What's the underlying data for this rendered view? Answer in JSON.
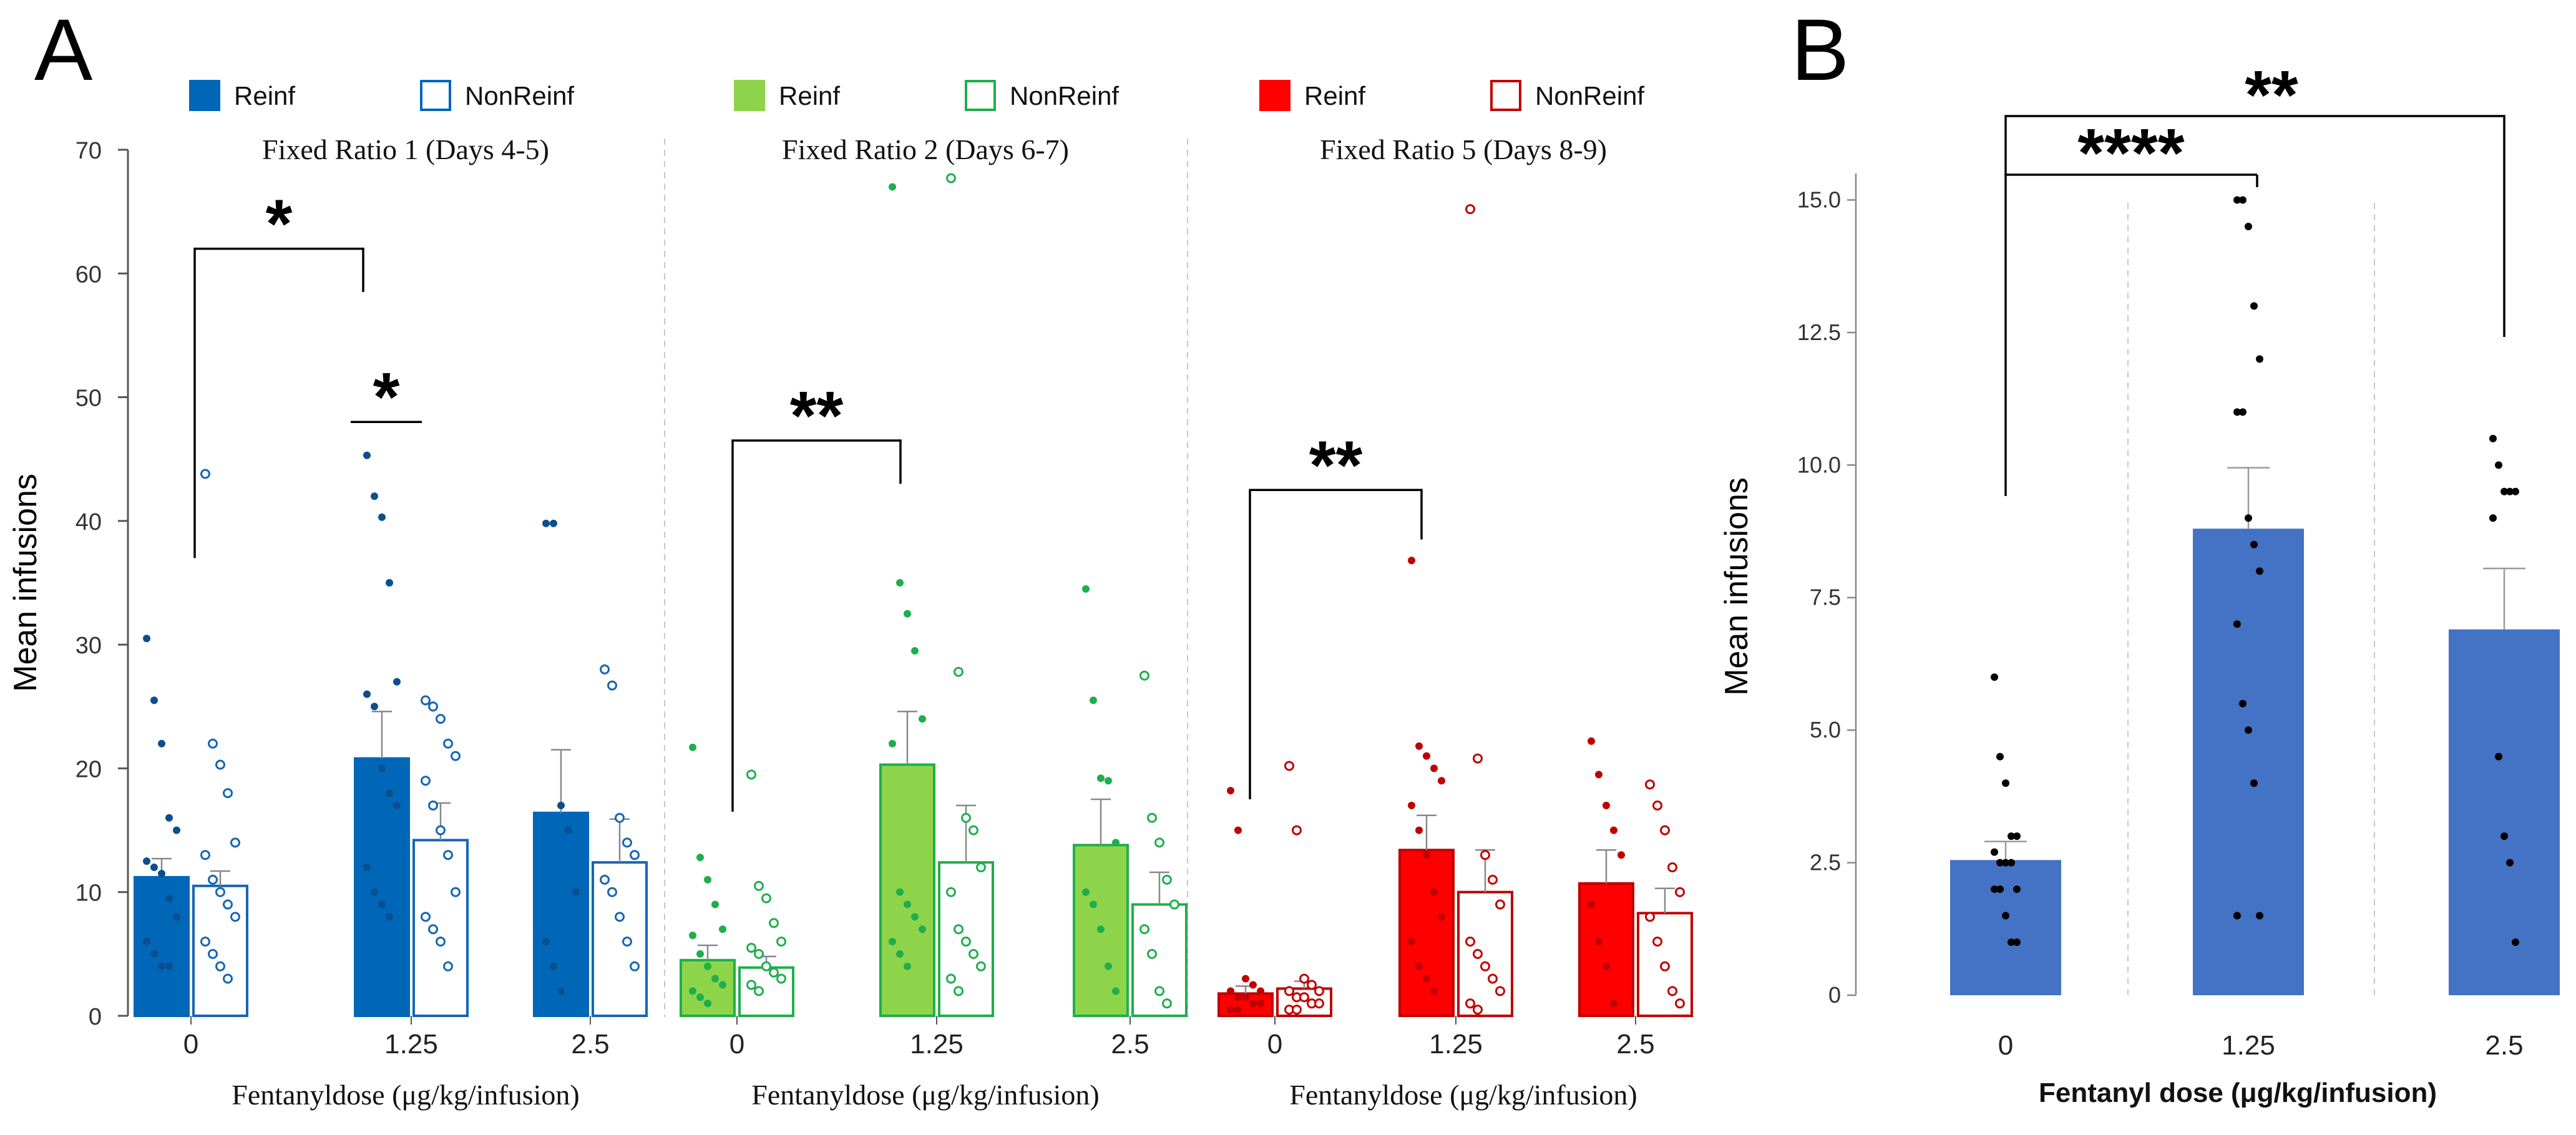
{
  "figure_labels": {
    "a": "A",
    "b": "B"
  },
  "chart_data": [
    {
      "type": "bar",
      "panel": "A",
      "ylabel": "Mean infusions",
      "ylim": [
        0,
        70
      ],
      "yticks": [
        "0",
        "10",
        "20",
        "30",
        "40",
        "50",
        "60",
        "70"
      ],
      "xlabel": "Fentanyldose (μg/kg/infusion)",
      "legend": [
        {
          "label": "Reinf",
          "filled": true,
          "color": "#0066b8"
        },
        {
          "label": "NonReinf",
          "filled": false,
          "color": "#0066b8"
        },
        {
          "label": "Reinf",
          "filled": true,
          "color": "#8ed44a"
        },
        {
          "label": "NonReinf",
          "filled": false,
          "color": "#1fae4b"
        },
        {
          "label": "Reinf",
          "filled": true,
          "color": "#ff0000"
        },
        {
          "label": "NonReinf",
          "filled": false,
          "color": "#c00000"
        }
      ],
      "groups": [
        {
          "title": "Fixed Ratio 1 (Days 4-5)",
          "categories": [
            "0",
            "1.25",
            "2.5"
          ],
          "reinf_color": "#0066b8",
          "reinf_edge": "#0066b8",
          "reinf_dot": "#0b4f8f",
          "nonreinf_color": "#1665b6",
          "series": [
            {
              "name": "Reinf",
              "values": [
                11.2,
                20.8,
                16.4
              ],
              "errors": [
                1.5,
                3.8,
                5.1
              ],
              "points": [
                [
                  30.5,
                  25.5,
                  22,
                  16,
                  15,
                  12.5,
                  12,
                  11.5,
                  9.5,
                  8,
                  6,
                  5,
                  4,
                  4
                ],
                [
                  45.3,
                  42,
                  40.3,
                  35,
                  27,
                  26,
                  25,
                  20,
                  18,
                  17,
                  12,
                  10,
                  9,
                  8
                ],
                [
                  39.8,
                  39.8,
                  17,
                  15,
                  10,
                  6,
                  4,
                  2
                ]
              ]
            },
            {
              "name": "NonReinf",
              "values": [
                10.5,
                14.2,
                12.4
              ],
              "errors": [
                1.2,
                3.0,
                3.5
              ],
              "points": [
                [
                  43.8,
                  22,
                  20.3,
                  18,
                  14,
                  13,
                  11,
                  10,
                  9,
                  8,
                  6,
                  5,
                  4,
                  3
                ],
                [
                  25.5,
                  25,
                  24,
                  22,
                  21,
                  19,
                  17,
                  15,
                  13,
                  10,
                  8,
                  7,
                  6,
                  4
                ],
                [
                  28,
                  26.7,
                  16,
                  14,
                  13,
                  11,
                  10,
                  8,
                  6,
                  4
                ]
              ]
            }
          ],
          "significance": [
            {
              "label": "*",
              "from": "0",
              "to": "1.25",
              "y": 62
            },
            {
              "label": "*",
              "from": "1.25 Reinf",
              "to": "1.25 NonReinf",
              "y": 48
            }
          ]
        },
        {
          "title": "Fixed Ratio 2 (Days 6-7)",
          "categories": [
            "0",
            "1.25",
            "2.5"
          ],
          "reinf_color": "#8ed44a",
          "reinf_edge": "#1fae4b",
          "reinf_dot": "#1fae4b",
          "nonreinf_color": "#1fae4b",
          "series": [
            {
              "name": "Reinf",
              "values": [
                4.5,
                20.3,
                13.8
              ],
              "errors": [
                1.2,
                4.3,
                3.7
              ],
              "points": [
                [
                  21.7,
                  12.8,
                  11,
                  9,
                  7,
                  6.5,
                  5,
                  4,
                  3,
                  2.5,
                  2,
                  1.5,
                  1
                ],
                [
                  67,
                  35,
                  32.5,
                  29.5,
                  24,
                  22,
                  10,
                  9,
                  8,
                  7,
                  6,
                  5,
                  4
                ],
                [
                  34.5,
                  25.5,
                  19.2,
                  19,
                  14,
                  10,
                  9,
                  7,
                  4,
                  2
                ]
              ]
            },
            {
              "name": "NonReinf",
              "values": [
                3.9,
                12.4,
                9.0
              ],
              "errors": [
                0.9,
                4.6,
                2.6
              ],
              "points": [
                [
                  19.5,
                  10.5,
                  9.5,
                  7.5,
                  6,
                  5.5,
                  5,
                  4,
                  3.5,
                  3,
                  2.5,
                  2
                ],
                [
                  67.7,
                  27.8,
                  16,
                  15,
                  12,
                  10,
                  7,
                  6,
                  5,
                  4,
                  3,
                  2
                ],
                [
                  27.5,
                  16,
                  14,
                  11,
                  9,
                  7,
                  5,
                  2,
                  1
                ]
              ]
            }
          ],
          "significance": [
            {
              "label": "**",
              "from": "0",
              "to": "1.25",
              "y": 47
            }
          ]
        },
        {
          "title": "Fixed Ratio 5 (Days 8-9)",
          "categories": [
            "0",
            "1.25",
            "2.5"
          ],
          "reinf_color": "#ff0000",
          "reinf_edge": "#c00000",
          "reinf_dot": "#c00000",
          "nonreinf_color": "#c00000",
          "series": [
            {
              "name": "Reinf",
              "values": [
                1.8,
                13.4,
                10.7
              ],
              "errors": [
                0.6,
                2.8,
                2.7
              ],
              "points": [
                [
                  18.2,
                  15,
                  3,
                  2.5,
                  2,
                  2,
                  1.5,
                  1.5,
                  1,
                  1,
                  0.5,
                  0.5
                ],
                [
                  36.8,
                  21.8,
                  21,
                  20,
                  19,
                  17,
                  15,
                  13,
                  10,
                  8,
                  6,
                  4,
                  3,
                  2
                ],
                [
                  22.2,
                  19.5,
                  17,
                  15,
                  13,
                  9,
                  6,
                  4,
                  1
                ]
              ]
            },
            {
              "name": "NonReinf",
              "values": [
                2.2,
                10.0,
                8.3
              ],
              "errors": [
                0.6,
                3.4,
                2.0
              ],
              "points": [
                [
                  20.2,
                  15,
                  3,
                  2.5,
                  2,
                  2,
                  1.5,
                  1.5,
                  1,
                  1,
                  0.5,
                  0.5
                ],
                [
                  65.2,
                  20.8,
                  13,
                  11,
                  9,
                  6,
                  5,
                  4,
                  3,
                  2,
                  1,
                  0.5
                ],
                [
                  18.7,
                  17,
                  15,
                  12,
                  10,
                  8,
                  6,
                  4,
                  2,
                  1
                ]
              ]
            }
          ],
          "significance": [
            {
              "label": "**",
              "from": "0",
              "to": "1.25",
              "y": 43
            }
          ]
        }
      ]
    },
    {
      "type": "bar",
      "panel": "B",
      "ylabel": "Mean infusions",
      "ylim": [
        0,
        15.5
      ],
      "yticks": [
        "0",
        "2.5",
        "5.0",
        "7.5",
        "10.0",
        "12.5",
        "15.0"
      ],
      "xlabel": "Fentanyl dose (μg/kg/infusion)",
      "categories": [
        "0",
        "1.25",
        "2.5"
      ],
      "color": "#4472c4",
      "values": [
        2.55,
        8.8,
        6.9
      ],
      "errors": [
        0.35,
        1.15,
        1.15
      ],
      "points": [
        [
          6.0,
          4.5,
          4.0,
          3.0,
          3.0,
          2.7,
          2.5,
          2.5,
          2.5,
          2.0,
          2.0,
          2.0,
          1.5,
          1.0,
          1.0
        ],
        [
          15.0,
          15.0,
          14.5,
          13.0,
          12.0,
          11.0,
          11.0,
          9.0,
          8.5,
          8.0,
          7.0,
          5.5,
          5.0,
          4.0,
          1.5,
          1.5
        ],
        [
          10.5,
          10.0,
          9.5,
          9.5,
          9.5,
          9.0,
          4.5,
          3.0,
          2.5,
          1.0
        ]
      ],
      "significance": [
        {
          "label": "****",
          "from": "0",
          "to": "1.25"
        },
        {
          "label": "**",
          "from": "0",
          "to": "2.5"
        }
      ]
    }
  ]
}
